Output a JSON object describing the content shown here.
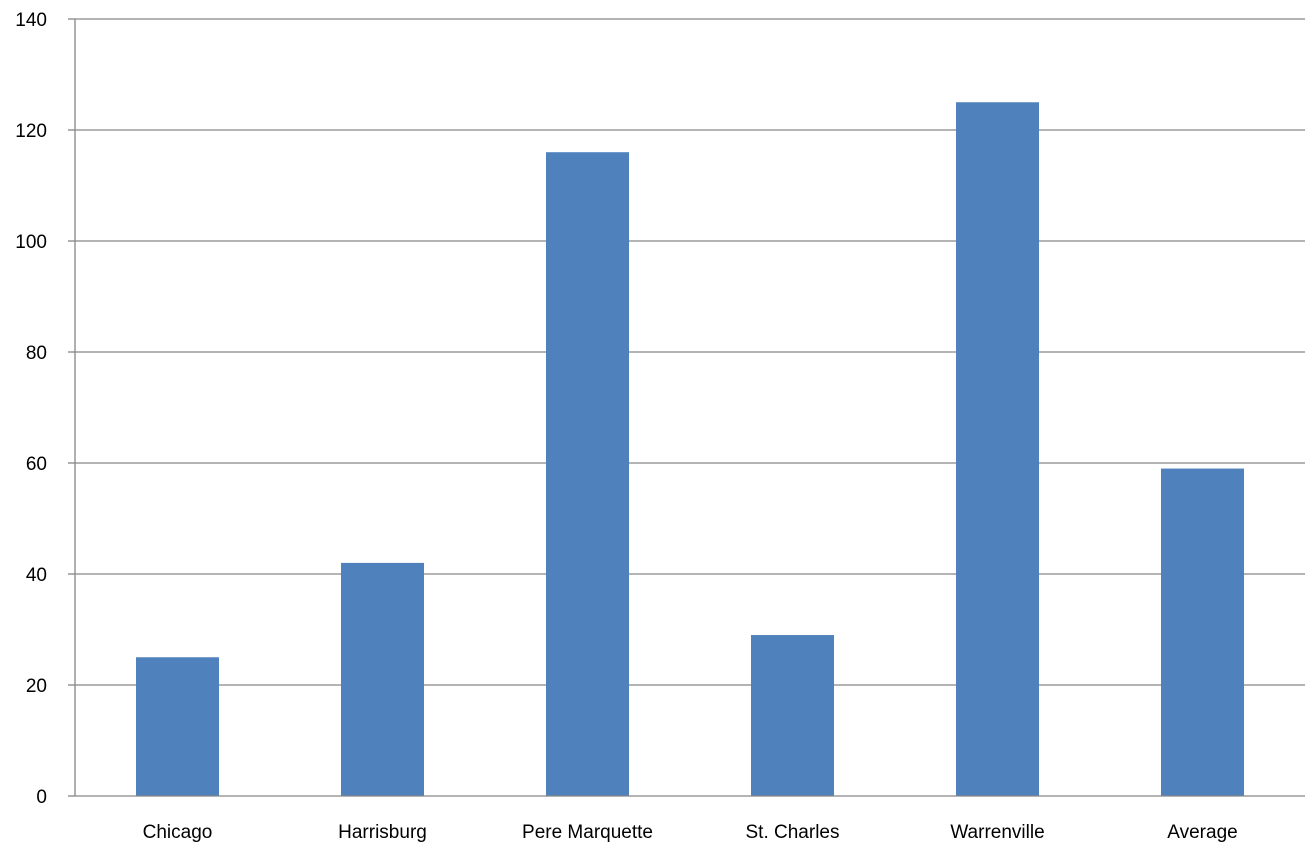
{
  "chart_data": {
    "type": "bar",
    "title": "",
    "xlabel": "",
    "ylabel": "",
    "categories": [
      "Chicago",
      "Harrisburg",
      "Pere Marquette",
      "St. Charles",
      "Warrenville",
      "Average"
    ],
    "values": [
      25,
      42,
      116,
      29,
      125,
      59
    ],
    "ylim": [
      0,
      140
    ],
    "yticks": [
      "0",
      "20",
      "40",
      "60",
      "80",
      "100",
      "120",
      "140"
    ],
    "grid": true,
    "legend": "none",
    "bar_color": "#4F81BD",
    "grid_color": "#868686",
    "axis_color": "#868686"
  }
}
